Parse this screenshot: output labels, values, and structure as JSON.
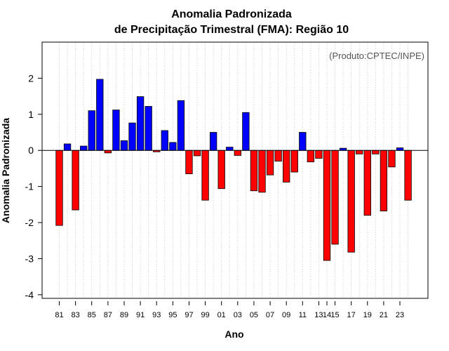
{
  "chart_data": {
    "type": "bar",
    "title_line1": "Anomalia Padronizada",
    "title_line2": "de Precipitação Trimestral (FMA): Região 10",
    "xlabel": "Ano",
    "ylabel": "Anomalia Padronizada",
    "credit": "(Produto:CPTEC/INPE)",
    "ylim": [
      -4.1,
      3.0
    ],
    "yticks": [
      2,
      1,
      0,
      -1,
      -2,
      -3,
      -4
    ],
    "ytick_labels": [
      "2",
      "1",
      "0",
      "-1",
      "-2",
      "-3",
      "-4"
    ],
    "grid": "vertical-dotted",
    "categories": [
      "81",
      "82",
      "83",
      "84",
      "85",
      "86",
      "87",
      "88",
      "89",
      "90",
      "91",
      "92",
      "93",
      "94",
      "95",
      "96",
      "97",
      "98",
      "99",
      "00",
      "01",
      "02",
      "03",
      "04",
      "05",
      "06",
      "07",
      "08",
      "09",
      "10",
      "11",
      "12",
      "13",
      "14",
      "15",
      "16",
      "17",
      "18",
      "19",
      "20",
      "21",
      "22",
      "23",
      "24"
    ],
    "tick_labels": [
      "81",
      "83",
      "85",
      "87",
      "89",
      "91",
      "93",
      "95",
      "97",
      "99",
      "01",
      "03",
      "05",
      "07",
      "09",
      "11",
      "13",
      "14",
      "15",
      "17",
      "19",
      "21",
      "23"
    ],
    "tick_label_indices": [
      0,
      2,
      4,
      6,
      8,
      10,
      12,
      14,
      16,
      18,
      20,
      22,
      24,
      26,
      28,
      30,
      32,
      33,
      34,
      36,
      38,
      40,
      42
    ],
    "values": [
      -2.08,
      0.18,
      -1.65,
      0.12,
      1.1,
      1.97,
      -0.07,
      1.12,
      0.27,
      0.76,
      1.49,
      1.22,
      -0.04,
      0.55,
      0.22,
      1.38,
      -0.65,
      -0.15,
      -1.38,
      0.5,
      -1.06,
      0.09,
      -0.14,
      1.05,
      -1.12,
      -1.16,
      -0.68,
      -0.3,
      -0.88,
      -0.6,
      0.5,
      -0.32,
      -0.22,
      -3.05,
      -2.6,
      0.06,
      -2.82,
      -0.1,
      -1.8,
      -0.1,
      -1.68,
      -0.46,
      0.07,
      -1.38
    ],
    "colors": {
      "positive": "#0000ff",
      "negative": "#ff0000",
      "outline": "#000000"
    }
  }
}
